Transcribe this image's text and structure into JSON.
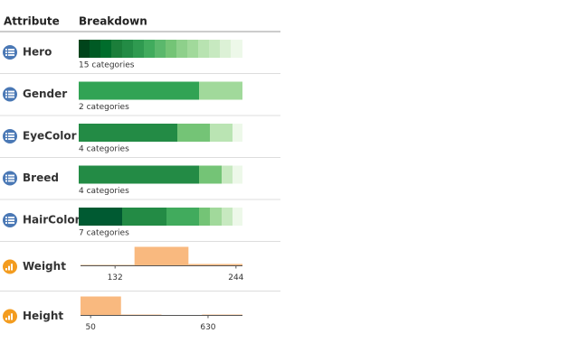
{
  "header": {
    "attribute": "Attribute",
    "breakdown": "Breakdown"
  },
  "rows": [
    {
      "name": "Hero",
      "kind": "categorical",
      "summary": "15 categories",
      "values": [
        12,
        12,
        12,
        12,
        12,
        12,
        12,
        12,
        12,
        12,
        12,
        12,
        12,
        12,
        13
      ],
      "colors": [
        "#00441b",
        "#005a24",
        "#006d2c",
        "#1b7e3a",
        "#238b45",
        "#2f9a50",
        "#41ab5d",
        "#5bb86c",
        "#74c476",
        "#8ed08b",
        "#a1d99b",
        "#b8e3b1",
        "#c7e9c0",
        "#dcf1d6",
        "#edf8e9"
      ]
    },
    {
      "name": "Gender",
      "kind": "categorical",
      "summary": "2 categories",
      "values": [
        133,
        48
      ],
      "colors": [
        "#31a354",
        "#a1d99b"
      ]
    },
    {
      "name": "EyeColor",
      "kind": "categorical",
      "summary": "4 categories",
      "values": [
        109,
        36,
        25,
        11
      ],
      "colors": [
        "#238b45",
        "#74c476",
        "#bae4b3",
        "#edf8e9"
      ]
    },
    {
      "name": "Breed",
      "kind": "categorical",
      "summary": "4 categories",
      "values": [
        133,
        25,
        12,
        11
      ],
      "colors": [
        "#238b45",
        "#74c476",
        "#c7e9c0",
        "#edf8e9"
      ]
    },
    {
      "name": "HairColor",
      "kind": "categorical",
      "summary": "7 categories",
      "values": [
        48,
        49,
        36,
        12,
        13,
        12,
        11
      ],
      "colors": [
        "#005a32",
        "#238b45",
        "#41ab5d",
        "#74c476",
        "#a1d99b",
        "#c7e9c0",
        "#edf8e9"
      ]
    },
    {
      "name": "Weight",
      "kind": "numerical",
      "bins": [
        100,
        150,
        200,
        250
      ],
      "counts": [
        1,
        21,
        2
      ],
      "xlim": [
        100,
        250
      ],
      "xticks": [
        132,
        244
      ],
      "color": "#f9b97f"
    },
    {
      "name": "Height",
      "kind": "numerical",
      "bins": [
        0,
        200,
        400,
        600,
        800
      ],
      "counts": [
        22,
        1,
        0,
        1
      ],
      "xlim": [
        0,
        800
      ],
      "xticks": [
        50,
        630
      ],
      "color": "#f9b97f"
    }
  ]
}
